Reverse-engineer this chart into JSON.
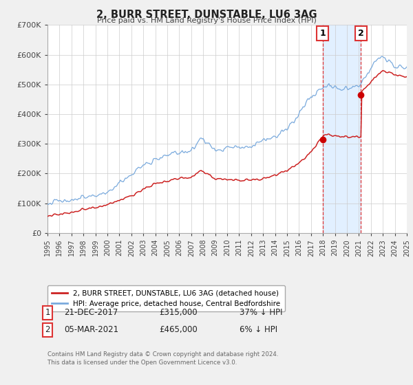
{
  "title": "2, BURR STREET, DUNSTABLE, LU6 3AG",
  "subtitle": "Price paid vs. HM Land Registry's House Price Index (HPI)",
  "ylim": [
    0,
    700000
  ],
  "xlim": [
    1995,
    2025
  ],
  "yticks": [
    0,
    100000,
    200000,
    300000,
    400000,
    500000,
    600000,
    700000
  ],
  "ytick_labels": [
    "£0",
    "£100K",
    "£200K",
    "£300K",
    "£400K",
    "£500K",
    "£600K",
    "£700K"
  ],
  "xticks": [
    1995,
    1996,
    1997,
    1998,
    1999,
    2000,
    2001,
    2002,
    2003,
    2004,
    2005,
    2006,
    2007,
    2008,
    2009,
    2010,
    2011,
    2012,
    2013,
    2014,
    2015,
    2016,
    2017,
    2018,
    2019,
    2020,
    2021,
    2022,
    2023,
    2024,
    2025
  ],
  "sale1_date": 2017.97,
  "sale1_price": 315000,
  "sale2_date": 2021.17,
  "sale2_price": 465000,
  "hpi_color": "#7aaadd",
  "price_color": "#cc2222",
  "marker_color": "#cc0000",
  "vline_color": "#dd3333",
  "shaded_color": "#ddeeff",
  "legend_label_price": "2, BURR STREET, DUNSTABLE, LU6 3AG (detached house)",
  "legend_label_hpi": "HPI: Average price, detached house, Central Bedfordshire",
  "annotation1_date": "21-DEC-2017",
  "annotation1_price": "£315,000",
  "annotation1_hpi": "37% ↓ HPI",
  "annotation2_date": "05-MAR-2021",
  "annotation2_price": "£465,000",
  "annotation2_hpi": "6% ↓ HPI",
  "footer1": "Contains HM Land Registry data © Crown copyright and database right 2024.",
  "footer2": "This data is licensed under the Open Government Licence v3.0.",
  "background_color": "#f0f0f0",
  "plot_bg_color": "#ffffff"
}
